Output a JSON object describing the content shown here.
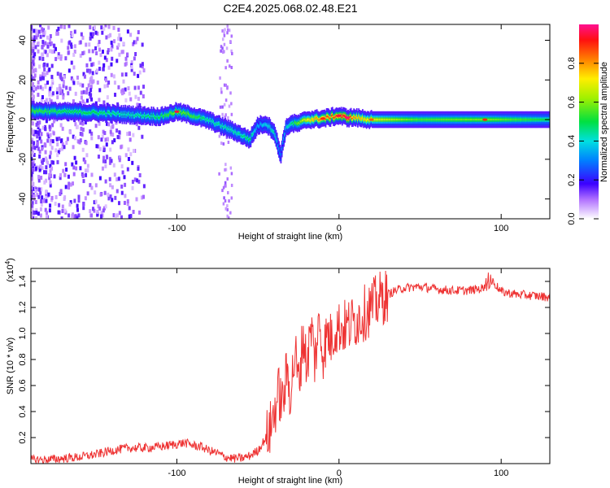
{
  "figure": {
    "title": "C2E4.2025.068.02.48.E21"
  },
  "chart_data": [
    {
      "type": "heatmap",
      "xlabel": "Height of straight line (km)",
      "ylabel": "Frequency (Hz)",
      "xlim": [
        -190,
        130
      ],
      "ylim": [
        -50,
        48
      ],
      "xticks": [
        -100,
        0,
        100
      ],
      "yticks": [
        -40,
        -20,
        0,
        20,
        40
      ],
      "grid": false,
      "colorbar": {
        "label": "Normalized spectral amplitude",
        "range": [
          0,
          1
        ],
        "ticks": [
          0.0,
          0.2,
          0.4,
          0.6,
          0.8
        ]
      },
      "ridge": {
        "x": [
          -190,
          -170,
          -150,
          -130,
          -110,
          -100,
          -90,
          -80,
          -70,
          -62,
          -55,
          -50,
          -45,
          -40,
          -36,
          -33,
          -30,
          -25,
          -20,
          -10,
          0,
          5,
          10,
          20,
          50,
          90,
          130
        ],
        "freq": [
          4.5,
          4.0,
          3.5,
          2.5,
          1.5,
          4.0,
          2.0,
          -0.5,
          -4.0,
          -7.0,
          -10.0,
          -3.0,
          -2.0,
          -6.0,
          -18.0,
          -5.0,
          -2.0,
          -2.0,
          0.0,
          0.5,
          2.0,
          1.0,
          1.0,
          0.0,
          0.0,
          0.0,
          0.0
        ],
        "amplitude": [
          0.55,
          0.5,
          0.5,
          0.45,
          0.5,
          0.6,
          0.55,
          0.45,
          0.45,
          0.45,
          0.5,
          0.35,
          0.4,
          0.45,
          0.3,
          0.4,
          0.45,
          0.6,
          0.7,
          0.85,
          0.9,
          0.95,
          0.8,
          0.7,
          0.55,
          0.6,
          0.5
        ]
      }
    },
    {
      "type": "line",
      "xlabel": "Height of straight line (km)",
      "ylabel": "SNR (10 * v/v)",
      "yscale_note": "(x10",
      "yscale_exp": "4",
      "xlim": [
        -190,
        130
      ],
      "ylim": [
        0,
        1.5
      ],
      "xticks": [
        -100,
        0,
        100
      ],
      "yticks": [
        0.2,
        0.4,
        0.6,
        0.8,
        1.0,
        1.2,
        1.4
      ],
      "line_color": "#ee3333",
      "series": [
        {
          "x": [
            -190,
            -180,
            -170,
            -160,
            -150,
            -140,
            -130,
            -120,
            -110,
            -100,
            -95,
            -90,
            -85,
            -80,
            -75,
            -70,
            -65,
            -60,
            -55,
            -50,
            -45,
            -42,
            -40,
            -37,
            -35,
            -32,
            -30,
            -27,
            -25,
            -22,
            -20,
            -17,
            -15,
            -12,
            -10,
            -7,
            -5,
            -2,
            0,
            5,
            10,
            15,
            20,
            25,
            30,
            35,
            40,
            50,
            60,
            70,
            80,
            90,
            95,
            100,
            110,
            120,
            130
          ],
          "y": [
            0.03,
            0.03,
            0.04,
            0.05,
            0.07,
            0.1,
            0.12,
            0.12,
            0.13,
            0.15,
            0.16,
            0.14,
            0.13,
            0.1,
            0.08,
            0.05,
            0.04,
            0.04,
            0.06,
            0.1,
            0.2,
            0.28,
            0.4,
            0.55,
            0.45,
            0.7,
            0.55,
            0.85,
            0.6,
            1.0,
            0.75,
            1.05,
            0.8,
            1.08,
            0.85,
            1.0,
            0.95,
            1.05,
            1.05,
            1.05,
            1.1,
            1.15,
            1.2,
            1.26,
            1.3,
            1.33,
            1.35,
            1.36,
            1.34,
            1.33,
            1.33,
            1.35,
            1.4,
            1.32,
            1.3,
            1.29,
            1.28
          ]
        }
      ]
    }
  ]
}
